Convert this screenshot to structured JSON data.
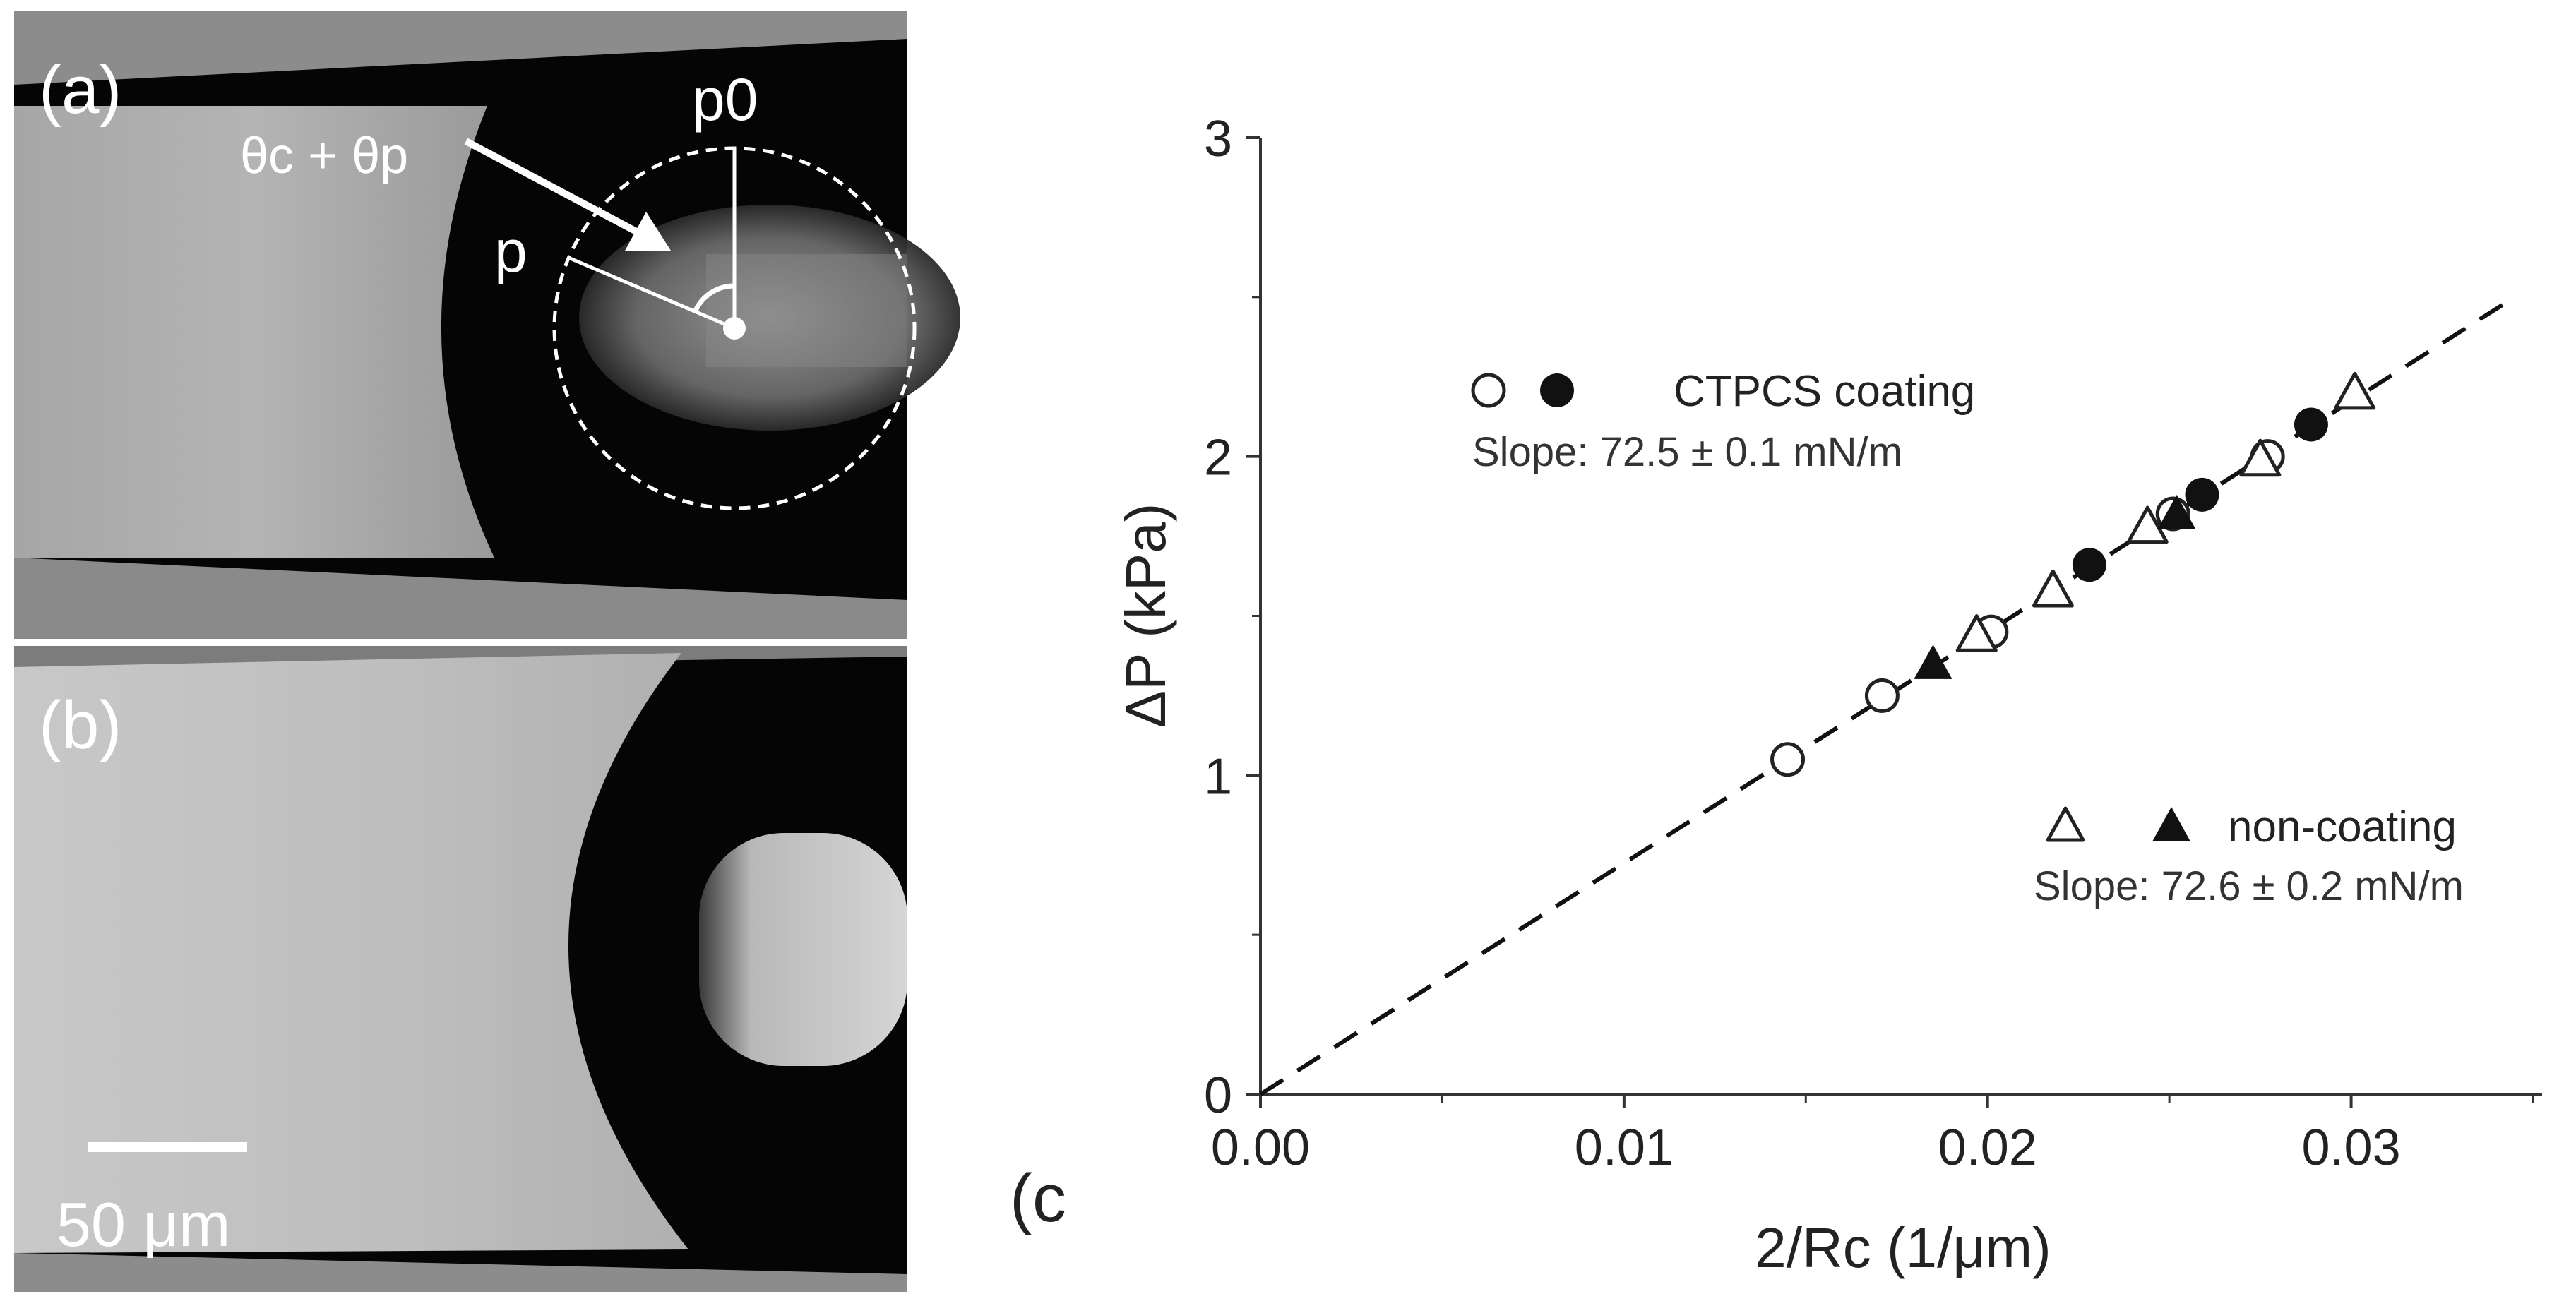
{
  "micrographs": {
    "panel_a": {
      "label": "(a)",
      "angle_label": "θc + θp",
      "p_label": "p",
      "p0_label": "p0"
    },
    "panel_b": {
      "label": "(b)",
      "scale_bar_label": "50 μm"
    }
  },
  "panel_c_label": "(c",
  "chart_data": {
    "type": "scatter",
    "xlabel": "2/Rc (1/μm)",
    "ylabel": "ΔP (kPa)",
    "xlim": [
      0.0,
      0.035
    ],
    "ylim": [
      0,
      3
    ],
    "x_ticks": [
      "0.00",
      "0.01",
      "0.02",
      "0.03"
    ],
    "y_ticks": [
      "0",
      "1",
      "2",
      "3"
    ],
    "grid": false,
    "series": [
      {
        "name": "CTPCS coating",
        "marker": "circle",
        "points": [
          {
            "x": 0.0145,
            "y": 1.05,
            "filled": false
          },
          {
            "x": 0.0171,
            "y": 1.25,
            "filled": false
          },
          {
            "x": 0.0201,
            "y": 1.45,
            "filled": false
          },
          {
            "x": 0.0228,
            "y": 1.66,
            "filled": true
          },
          {
            "x": 0.0251,
            "y": 1.82,
            "filled": false
          },
          {
            "x": 0.0259,
            "y": 1.88,
            "filled": true
          },
          {
            "x": 0.0277,
            "y": 2.0,
            "filled": false
          },
          {
            "x": 0.0289,
            "y": 2.1,
            "filled": true
          }
        ]
      },
      {
        "name": "non-coating",
        "marker": "triangle",
        "points": [
          {
            "x": 0.0185,
            "y": 1.35,
            "filled": true
          },
          {
            "x": 0.0197,
            "y": 1.44,
            "filled": false
          },
          {
            "x": 0.0218,
            "y": 1.58,
            "filled": false
          },
          {
            "x": 0.0244,
            "y": 1.78,
            "filled": false
          },
          {
            "x": 0.0252,
            "y": 1.82,
            "filled": true
          },
          {
            "x": 0.0275,
            "y": 1.99,
            "filled": false
          },
          {
            "x": 0.0301,
            "y": 2.2,
            "filled": false
          }
        ]
      }
    ],
    "fit_line": {
      "style": "dashed",
      "x": [
        0.0,
        0.0345
      ],
      "y": [
        0.0,
        2.5
      ]
    },
    "annotations": [
      {
        "text": "CTPCS coating",
        "slope": "Slope: 72.5 ± 0.1 mN/m"
      },
      {
        "text": "non-coating",
        "slope": "Slope: 72.6 ± 0.2 mN/m"
      }
    ]
  }
}
